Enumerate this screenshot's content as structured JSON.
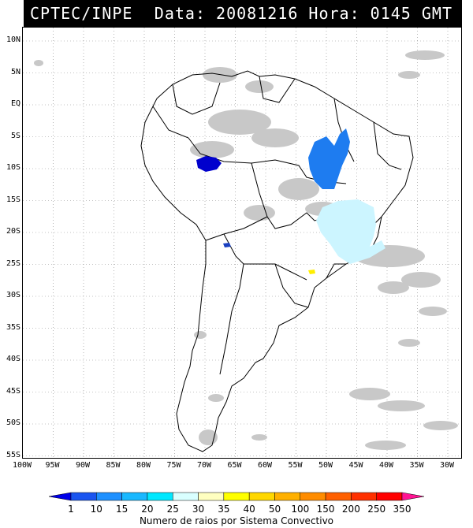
{
  "header": {
    "title": "CPTEC/INPE",
    "stamp": "Data: 20081216 Hora: 0145 GMT"
  },
  "axes": {
    "latitudes": [
      "10N",
      "5N",
      "EQ",
      "5S",
      "10S",
      "15S",
      "20S",
      "25S",
      "30S",
      "35S",
      "40S",
      "45S",
      "50S",
      "55S"
    ],
    "longitudes": [
      "100W",
      "95W",
      "90W",
      "85W",
      "80W",
      "75W",
      "70W",
      "65W",
      "60W",
      "55W",
      "50W",
      "45W",
      "40W",
      "35W",
      "30W"
    ]
  },
  "colorbar": {
    "ticks": [
      "1",
      "10",
      "15",
      "20",
      "25",
      "30",
      "35",
      "40",
      "50",
      "100",
      "150",
      "200",
      "250",
      "350"
    ],
    "colors": [
      "#0000e8",
      "#1a55f0",
      "#1e90ff",
      "#19b8ff",
      "#00e8ff",
      "#d9ffff",
      "#ffffc0",
      "#ffff00",
      "#ffd700",
      "#ffb000",
      "#ff8c00",
      "#ff6000",
      "#ff3000",
      "#ff0000",
      "#ff1493"
    ],
    "title": "Numero de raios por Sistema Convectivo"
  },
  "legend_colors": {
    "cloud": "#c8c8c8",
    "dark_blue_cluster": "#0000cd",
    "blue_cluster": "#1e7cf0",
    "light_cyan_cluster": "#ccf5ff",
    "yellow_cluster": "#ffee00"
  }
}
